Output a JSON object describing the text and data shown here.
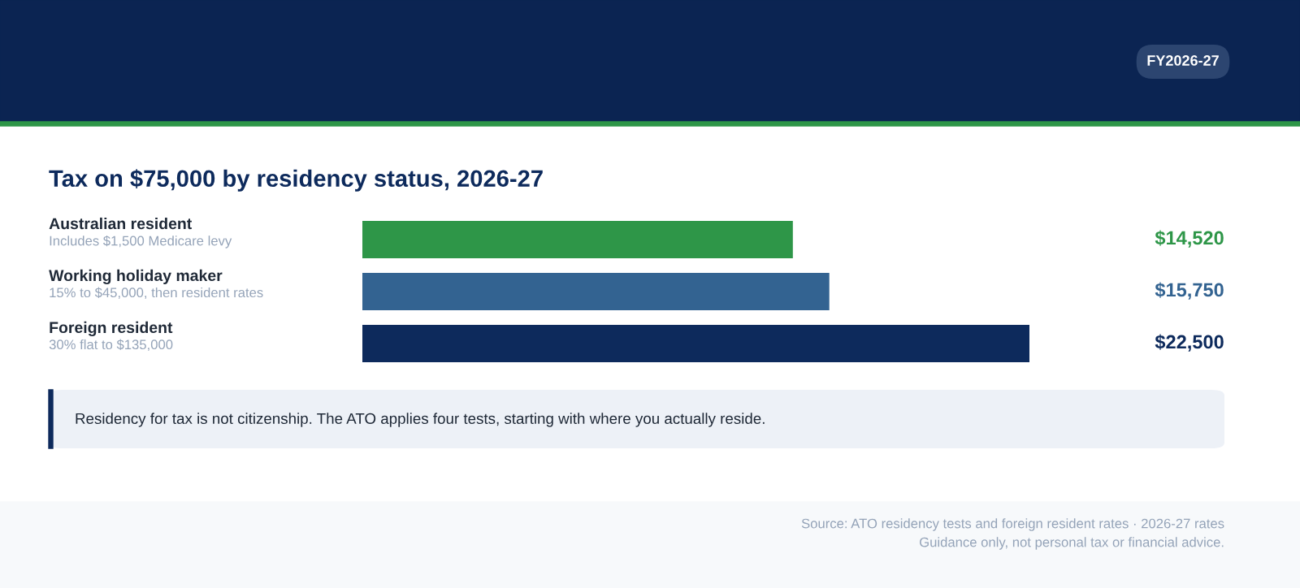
{
  "chart_data": {
    "type": "bar",
    "orientation": "horizontal",
    "title": "Tax on $75,000 by residency status, 2026-27",
    "categories": [
      "Australian resident\nIncludes $1,500 Medicare levy",
      "Working holiday maker\n15% to $45,000, then resident rates",
      "Foreign resident\n30% flat to $135,000"
    ],
    "values": [
      14520,
      15750,
      22500
    ],
    "colors": [
      "#2e9648",
      "#336391",
      "#0d2a5c"
    ],
    "value_labels": [
      "$14,520",
      "$15,750",
      "$22,500"
    ],
    "xlim": [
      0,
      22500
    ],
    "annotations": [
      "FY2026-27",
      "Residency for tax is not citizenship. The ATO applies four tests, starting with where you actually reside.",
      "Source: ATO residency tests and foreign resident rates · 2026-27 rates",
      "Guidance only, not personal tax or financial advice."
    ]
  }
}
